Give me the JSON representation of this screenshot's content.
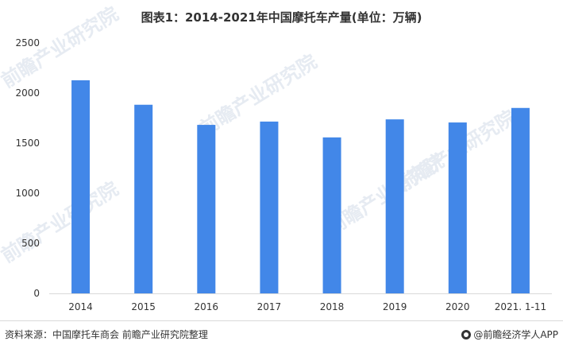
{
  "chart_data": {
    "type": "bar",
    "title": "图表1：2014-2021年中国摩托车产量(单位：万辆)",
    "categories": [
      "2014",
      "2015",
      "2016",
      "2017",
      "2018",
      "2019",
      "2020",
      "2021. 1-11"
    ],
    "values": [
      2127,
      1883,
      1682,
      1715,
      1557,
      1737,
      1706,
      1851
    ],
    "yticks": [
      "0",
      "500",
      "1000",
      "1500",
      "2000",
      "2500"
    ],
    "ylim": [
      0,
      2500
    ],
    "grid": false,
    "bar_color": "#4287e8"
  },
  "footer": {
    "source": "资料来源：中国摩托车商会 前瞻产业研究院整理",
    "brand": "@前瞻经济学人APP"
  },
  "watermark": {
    "text": "前瞻产业研究院"
  },
  "colors": {
    "axis": "#d9d9d9",
    "text": "#333333"
  }
}
